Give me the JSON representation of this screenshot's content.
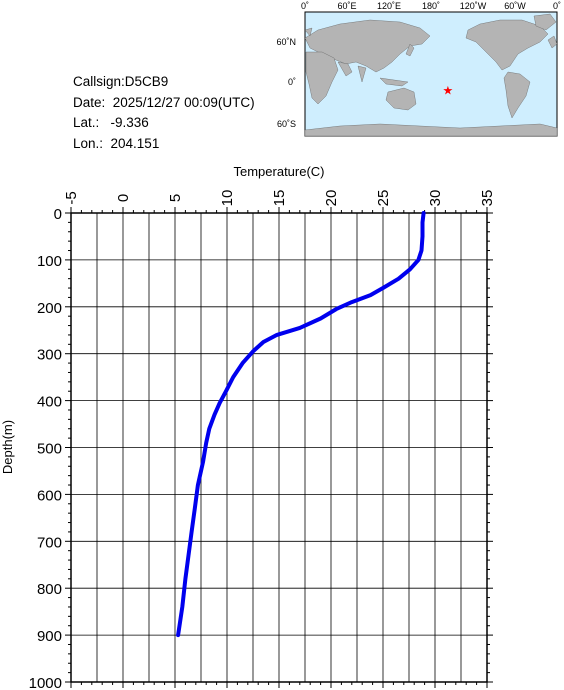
{
  "info": {
    "callsign": "Callsign:D5CB9",
    "date": "Date:  2025/12/27 00:09(UTC)",
    "lat": "Lat.:   -9.336",
    "lon": "Lon.:  204.151"
  },
  "map": {
    "lon_labels": [
      "0˚",
      "60˚E",
      "120˚E",
      "180˚",
      "120˚W",
      "60˚W",
      "0˚"
    ],
    "lat_labels": [
      "60˚N",
      "0˚",
      "60˚S"
    ],
    "marker_lon": 204.151,
    "marker_lat": -9.336,
    "marker_color": "#ff0000",
    "ocean_color": "#cfeefe",
    "land_color": "#b4b4b4"
  },
  "chart_data": {
    "type": "line",
    "xlabel": "Temperature(C)",
    "ylabel": "Depth(m)",
    "xlim": [
      -5,
      35
    ],
    "ylim": [
      0,
      1000
    ],
    "x_ticks": [
      "-5",
      "0",
      "5",
      "10",
      "15",
      "20",
      "25",
      "30",
      "35"
    ],
    "y_ticks": [
      "0",
      "100",
      "200",
      "300",
      "400",
      "500",
      "600",
      "700",
      "800",
      "900",
      "1000"
    ],
    "series_color": "#0000ee",
    "series": [
      {
        "x": [
          28.9,
          28.8,
          28.8,
          28.7,
          28.4,
          27.6,
          26.5,
          25.0,
          23.8,
          22.0,
          20.5,
          19.0,
          17.0,
          14.8,
          13.5,
          12.5,
          11.5,
          10.6,
          9.9,
          9.3,
          8.8,
          8.3,
          8.0,
          7.7,
          7.2,
          6.9,
          6.6,
          6.3,
          6.0,
          5.7,
          5.3
        ],
        "y": [
          0,
          20,
          50,
          80,
          100,
          120,
          140,
          160,
          175,
          190,
          205,
          225,
          245,
          260,
          275,
          295,
          320,
          350,
          380,
          405,
          430,
          460,
          490,
          530,
          580,
          630,
          680,
          730,
          780,
          840,
          900
        ]
      }
    ]
  }
}
